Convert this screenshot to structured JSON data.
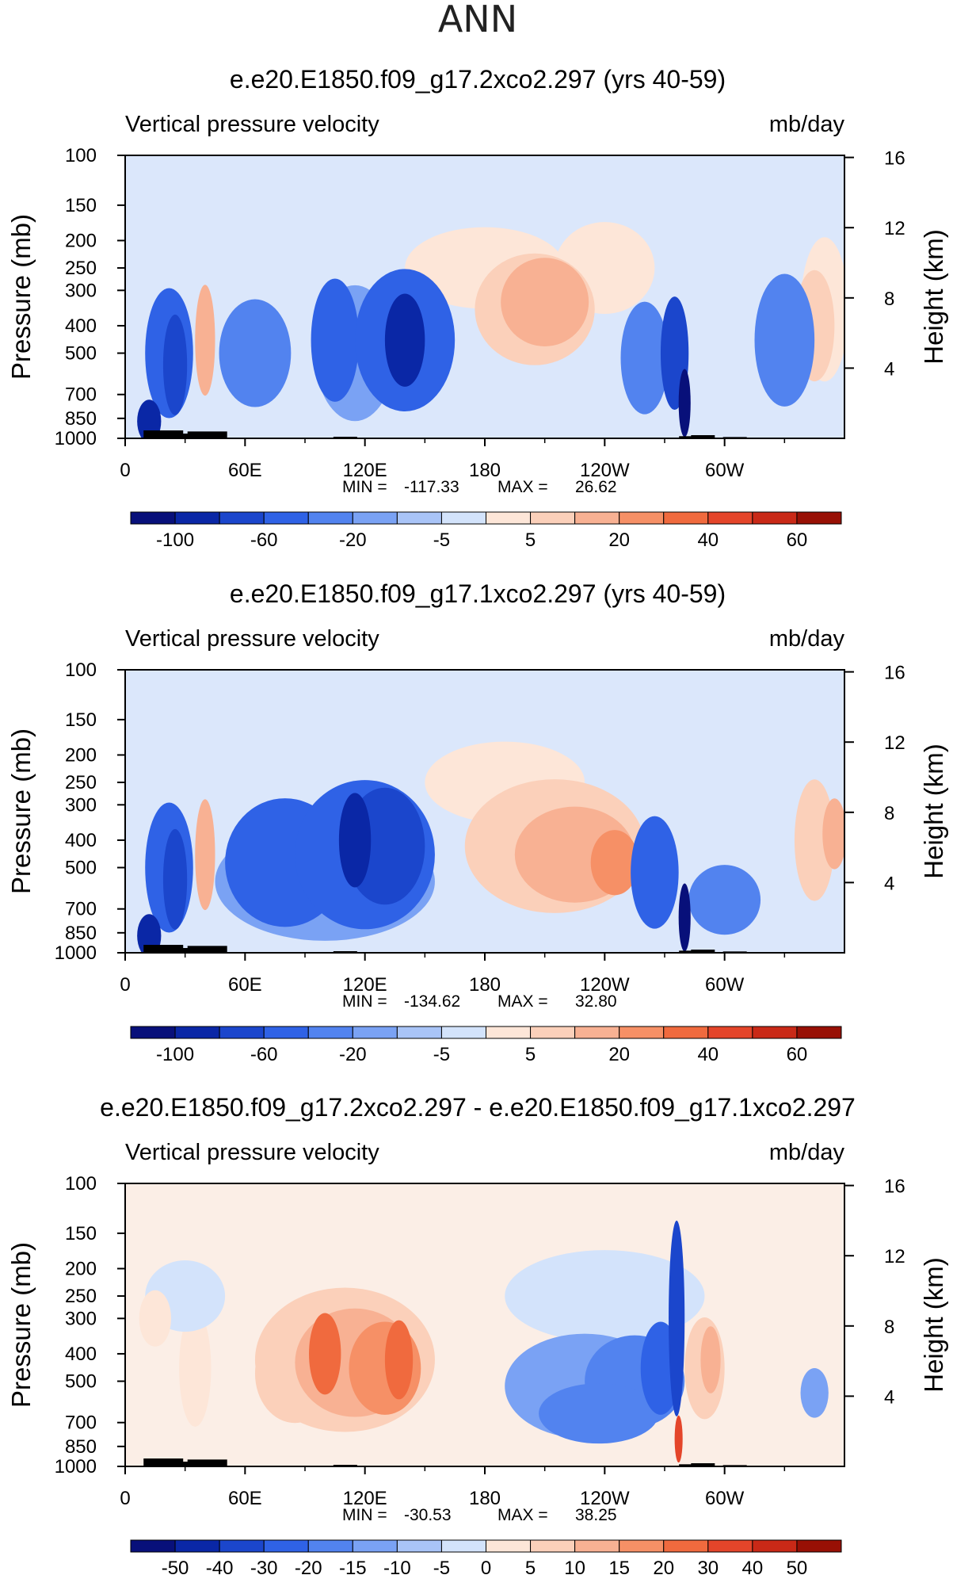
{
  "suptitle": "ANN",
  "colors": {
    "neg": [
      "#08107a",
      "#0a27a6",
      "#1b46cc",
      "#2f62e6",
      "#5283ef",
      "#7aa2f4",
      "#a9c4f7",
      "#d3e3fb"
    ],
    "pos": [
      "#fde6d8",
      "#fbd0ba",
      "#f8b193",
      "#f69066",
      "#f06a3e",
      "#e4452a",
      "#c92917",
      "#981005"
    ],
    "topography": "#000000",
    "frame": "#000000"
  },
  "chart_data": [
    {
      "type": "heatmap",
      "title": "e.e20.E1850.f09_g17.2xco2.297 (yrs 40-59)",
      "left_label": "Vertical pressure velocity",
      "right_label": "mb/day",
      "ylabel": "Pressure (mb)",
      "ylabel_right": "Height (km)",
      "x_ticks": [
        "0",
        "60E",
        "120E",
        "180",
        "120W",
        "60W"
      ],
      "y_ticks": [
        "100",
        "150",
        "200",
        "250",
        "300",
        "400",
        "500",
        "700",
        "850",
        "1000"
      ],
      "y_ticks_right": [
        "16",
        "12",
        "8",
        "4"
      ],
      "stats": {
        "min_label": "MIN =",
        "min": "-117.33",
        "max_label": "MAX =",
        "max": "26.62"
      },
      "colorbar_labels": [
        "-100",
        "-60",
        "-20",
        "-5",
        "5",
        "20",
        "40",
        "60"
      ]
    },
    {
      "type": "heatmap",
      "title": "e.e20.E1850.f09_g17.1xco2.297 (yrs 40-59)",
      "left_label": "Vertical pressure velocity",
      "right_label": "mb/day",
      "ylabel": "Pressure (mb)",
      "ylabel_right": "Height (km)",
      "x_ticks": [
        "0",
        "60E",
        "120E",
        "180",
        "120W",
        "60W"
      ],
      "y_ticks": [
        "100",
        "150",
        "200",
        "250",
        "300",
        "400",
        "500",
        "700",
        "850",
        "1000"
      ],
      "y_ticks_right": [
        "16",
        "12",
        "8",
        "4"
      ],
      "stats": {
        "min_label": "MIN =",
        "min": "-134.62",
        "max_label": "MAX =",
        "max": "32.80"
      },
      "colorbar_labels": [
        "-100",
        "-60",
        "-20",
        "-5",
        "5",
        "20",
        "40",
        "60"
      ]
    },
    {
      "type": "heatmap",
      "title": "e.e20.E1850.f09_g17.2xco2.297 - e.e20.E1850.f09_g17.1xco2.297",
      "left_label": "Vertical pressure velocity",
      "right_label": "mb/day",
      "ylabel": "Pressure (mb)",
      "ylabel_right": "Height (km)",
      "x_ticks": [
        "0",
        "60E",
        "120E",
        "180",
        "120W",
        "60W"
      ],
      "y_ticks": [
        "100",
        "150",
        "200",
        "250",
        "300",
        "400",
        "500",
        "700",
        "850",
        "1000"
      ],
      "y_ticks_right": [
        "16",
        "12",
        "8",
        "4"
      ],
      "stats": {
        "min_label": "MIN =",
        "min": "-30.53",
        "max_label": "MAX =",
        "max": "38.25"
      },
      "colorbar_labels": [
        "-50",
        "-40",
        "-30",
        "-20",
        "-15",
        "-10",
        "-5",
        "0",
        "5",
        "10",
        "15",
        "20",
        "30",
        "40",
        "50"
      ]
    }
  ]
}
